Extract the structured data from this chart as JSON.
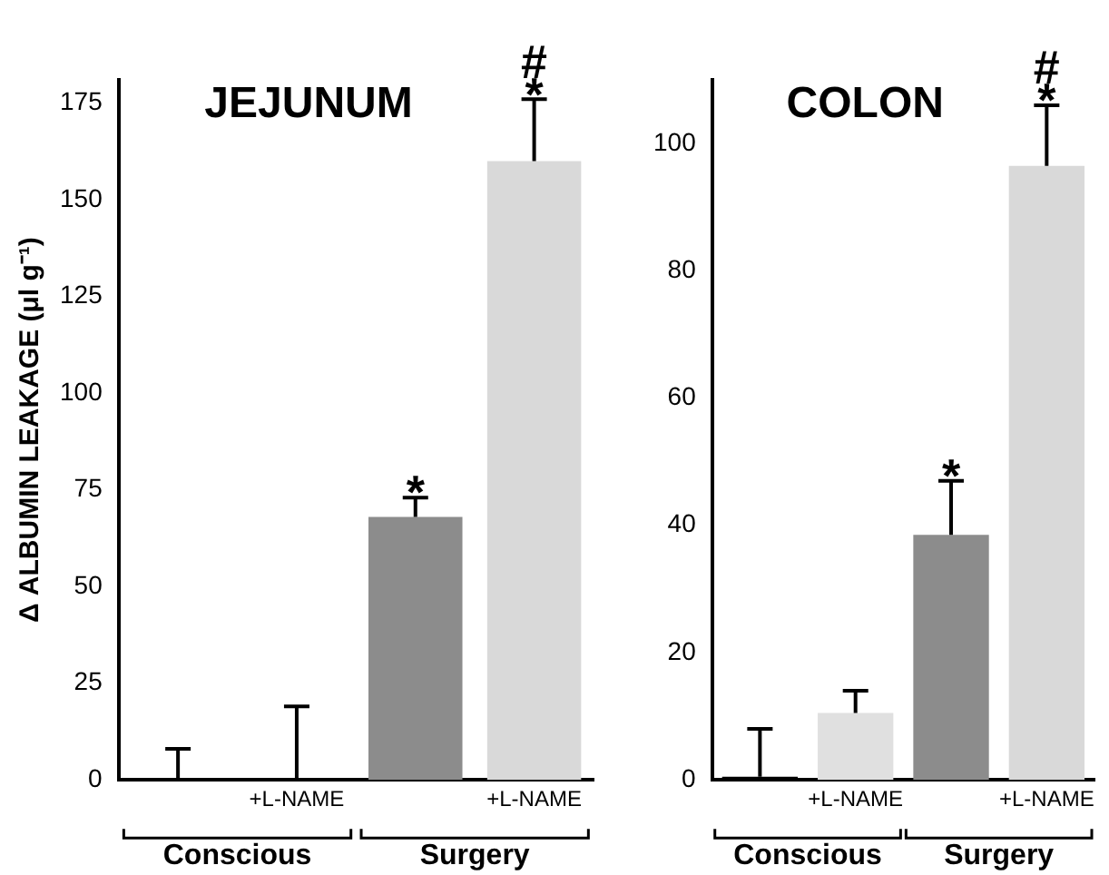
{
  "chart_data": [
    {
      "type": "bar",
      "title": "JEJUNUM",
      "ylabel": "Δ ALBUMIN LEAKAGE (μl g⁻¹)",
      "categories": [
        null,
        "+L-NAME",
        null,
        "+L-NAME"
      ],
      "values": [
        0.5,
        0.5,
        68,
        160
      ],
      "errors": [
        [
          0.5,
          8
        ],
        [
          0.5,
          19
        ],
        [
          68,
          73
        ],
        [
          160,
          176
        ]
      ],
      "value_labels": [
        null,
        null,
        "*",
        "#\n*"
      ],
      "colors": [
        "#000000",
        "#000000",
        "#8c8c8c",
        "#d9d9d9"
      ],
      "ylim": [
        0,
        181
      ],
      "yticks": [
        0,
        25,
        50,
        75,
        100,
        125,
        150,
        175
      ],
      "grid": false,
      "legend": false,
      "annotations": [
        "Conscious",
        "Surgery"
      ]
    },
    {
      "type": "bar",
      "title": "COLON",
      "categories": [
        null,
        "+L-NAME",
        null,
        "+L-NAME"
      ],
      "values": [
        0.5,
        10.5,
        38.5,
        96.5
      ],
      "errors": [
        [
          0.5,
          8
        ],
        [
          10.5,
          14
        ],
        [
          38.5,
          47
        ],
        [
          96.5,
          106
        ]
      ],
      "value_labels": [
        null,
        null,
        "*",
        "#\n*"
      ],
      "colors": [
        "#000000",
        "#e0e0e0",
        "#8c8c8c",
        "#d9d9d9"
      ],
      "ylim": [
        0,
        110
      ],
      "yticks": [
        0,
        20,
        40,
        60,
        80,
        100
      ],
      "grid": false,
      "legend": false,
      "annotations": [
        "Conscious",
        "Surgery"
      ]
    }
  ]
}
